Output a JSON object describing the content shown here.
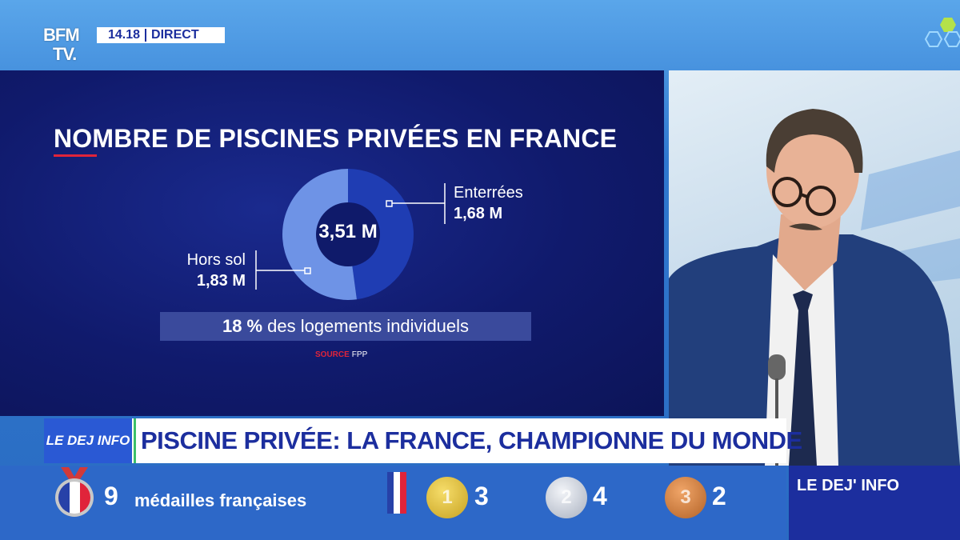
{
  "header": {
    "channel_logo_line1": "BFM",
    "channel_logo_line2": "TV.",
    "time": "14.18",
    "live_label": "DIRECT"
  },
  "infographic": {
    "title": "NOMBRE DE PISCINES PRIVÉES EN FRANCE",
    "total": "3,51 M",
    "segments": [
      {
        "name": "Enterrées",
        "value_label": "1,68 M",
        "value": 1.68,
        "color": "#1f3db3"
      },
      {
        "name": "Hors sol",
        "value_label": "1,83 M",
        "value": 1.83,
        "color": "#6e93e6"
      }
    ],
    "stat_bold": "18 %",
    "stat_text": "des logements individuels",
    "source_label": "SOURCE",
    "source_value": "FPP"
  },
  "lower_third": {
    "show_logo": "LE DEJ INFO",
    "headline": "PISCINE PRIVÉE: LA FRANCE, CHAMPIONNE DU MONDE"
  },
  "medal_bar": {
    "total_count": "9",
    "total_label": "médailles françaises",
    "gold_count": "3",
    "silver_count": "4",
    "bronze_count": "2",
    "gold_digit": "1",
    "silver_digit": "2",
    "bronze_digit": "3",
    "corner_label": "LE DEJ' INFO"
  }
}
